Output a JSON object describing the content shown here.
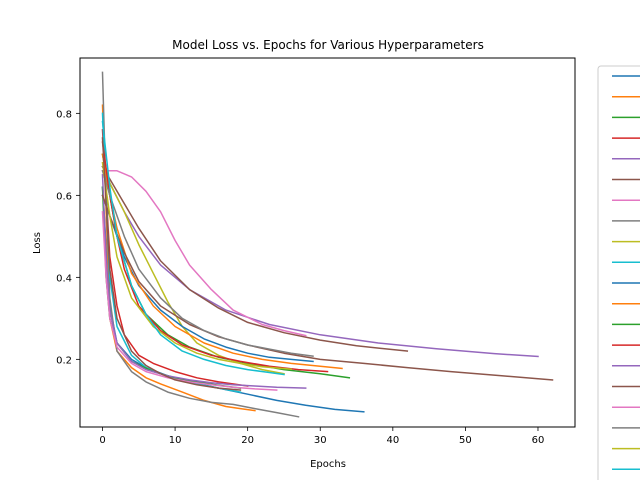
{
  "chart_data": {
    "type": "line",
    "title": "Model Loss vs. Epochs for Various Hyperparameters",
    "xlabel": "Epochs",
    "ylabel": "Loss",
    "xlim": [
      -3.1,
      65.1
    ],
    "ylim": [
      0.035,
      0.935
    ],
    "xticks": [
      "0",
      "10",
      "20",
      "30",
      "40",
      "50",
      "60"
    ],
    "xtick_values": [
      0,
      10,
      20,
      30,
      40,
      50,
      60
    ],
    "yticks": [
      "0.2",
      "0.4",
      "0.6",
      "0.8"
    ],
    "ytick_values": [
      0.2,
      0.4,
      0.6,
      0.8
    ],
    "grid": false,
    "legend_placement": "right",
    "legend_swatch_colors": [
      "#1f77b4",
      "#ff7f0e",
      "#2ca02c",
      "#d62728",
      "#9467bd",
      "#8c564b",
      "#e377c2",
      "#7f7f7f",
      "#bcbd22",
      "#17becf",
      "#1f77b4",
      "#ff7f0e",
      "#2ca02c",
      "#d62728",
      "#9467bd",
      "#8c564b",
      "#e377c2",
      "#7f7f7f",
      "#bcbd22",
      "#17becf"
    ],
    "series": [
      {
        "color": "#1f77b4",
        "x": [
          0,
          1,
          2,
          4,
          6,
          9,
          12,
          16,
          20,
          24,
          28,
          32,
          36
        ],
        "y": [
          0.62,
          0.33,
          0.24,
          0.2,
          0.18,
          0.16,
          0.145,
          0.13,
          0.115,
          0.1,
          0.088,
          0.078,
          0.072
        ]
      },
      {
        "color": "#ff7f0e",
        "x": [
          0,
          1,
          2,
          4,
          6,
          8,
          11,
          14,
          17,
          19,
          21
        ],
        "y": [
          0.82,
          0.3,
          0.22,
          0.18,
          0.155,
          0.14,
          0.12,
          0.1,
          0.085,
          0.08,
          0.075
        ]
      },
      {
        "color": "#2ca02c",
        "x": [
          0,
          1,
          2,
          4,
          6,
          9,
          12,
          16,
          20,
          25,
          30,
          34
        ],
        "y": [
          0.7,
          0.6,
          0.5,
          0.38,
          0.31,
          0.26,
          0.23,
          0.205,
          0.19,
          0.175,
          0.165,
          0.155
        ]
      },
      {
        "color": "#d62728",
        "x": [
          0,
          1,
          2,
          3,
          5,
          7,
          10,
          13,
          16,
          20
        ],
        "y": [
          0.76,
          0.45,
          0.33,
          0.26,
          0.21,
          0.19,
          0.17,
          0.155,
          0.145,
          0.135
        ]
      },
      {
        "color": "#9467bd",
        "x": [
          0,
          1,
          3,
          5,
          8,
          12,
          17,
          23,
          30,
          38,
          46,
          54,
          60
        ],
        "y": [
          0.67,
          0.63,
          0.56,
          0.5,
          0.43,
          0.37,
          0.32,
          0.285,
          0.26,
          0.24,
          0.226,
          0.214,
          0.207
        ]
      },
      {
        "color": "#8c564b",
        "x": [
          0,
          1,
          3,
          5,
          8,
          12,
          16,
          20,
          25,
          30,
          35,
          42
        ],
        "y": [
          0.67,
          0.64,
          0.58,
          0.52,
          0.44,
          0.37,
          0.325,
          0.29,
          0.265,
          0.247,
          0.233,
          0.22
        ]
      },
      {
        "color": "#e377c2",
        "x": [
          0,
          2,
          4,
          6,
          8,
          10,
          12,
          15,
          18,
          22,
          25,
          28
        ],
        "y": [
          0.66,
          0.66,
          0.645,
          0.61,
          0.56,
          0.49,
          0.43,
          0.37,
          0.32,
          0.285,
          0.27,
          0.258
        ]
      },
      {
        "color": "#7f7f7f",
        "x": [
          0,
          0.5,
          1,
          2,
          4,
          6,
          9,
          12,
          15,
          18,
          21,
          24,
          27
        ],
        "y": [
          0.9,
          0.6,
          0.35,
          0.22,
          0.17,
          0.145,
          0.12,
          0.105,
          0.095,
          0.09,
          0.08,
          0.07,
          0.06
        ]
      },
      {
        "color": "#bcbd22",
        "x": [
          0,
          1,
          3,
          5,
          7,
          9,
          11,
          13,
          16,
          19,
          22,
          25
        ],
        "y": [
          0.7,
          0.63,
          0.56,
          0.48,
          0.41,
          0.34,
          0.28,
          0.24,
          0.21,
          0.19,
          0.175,
          0.165
        ]
      },
      {
        "color": "#17becf",
        "x": [
          0,
          1,
          2,
          4,
          6,
          8,
          10,
          13,
          16,
          19
        ],
        "y": [
          0.8,
          0.4,
          0.28,
          0.21,
          0.18,
          0.165,
          0.155,
          0.14,
          0.13,
          0.12
        ]
      },
      {
        "color": "#1f77b4",
        "x": [
          0,
          1,
          3,
          5,
          8,
          11,
          14,
          17,
          20,
          23,
          26,
          29
        ],
        "y": [
          0.6,
          0.55,
          0.45,
          0.38,
          0.32,
          0.28,
          0.25,
          0.23,
          0.215,
          0.205,
          0.2,
          0.195
        ]
      },
      {
        "color": "#ff7f0e",
        "x": [
          0,
          1,
          2,
          4,
          7,
          10,
          14,
          18,
          22,
          26,
          30,
          33
        ],
        "y": [
          0.7,
          0.6,
          0.52,
          0.41,
          0.33,
          0.28,
          0.24,
          0.215,
          0.2,
          0.19,
          0.183,
          0.178
        ]
      },
      {
        "color": "#2ca02c",
        "x": [
          0,
          0.5,
          1,
          2,
          4,
          7,
          10,
          13,
          16,
          19
        ],
        "y": [
          0.62,
          0.4,
          0.3,
          0.24,
          0.195,
          0.17,
          0.155,
          0.145,
          0.137,
          0.13
        ]
      },
      {
        "color": "#d62728",
        "x": [
          0,
          1,
          2,
          3,
          5,
          8,
          11,
          15,
          19,
          23,
          27,
          31
        ],
        "y": [
          0.73,
          0.6,
          0.5,
          0.42,
          0.33,
          0.27,
          0.235,
          0.21,
          0.195,
          0.183,
          0.175,
          0.17
        ]
      },
      {
        "color": "#9467bd",
        "x": [
          0,
          0.5,
          1,
          2,
          4,
          6,
          9,
          12,
          15,
          18,
          21,
          24,
          28
        ],
        "y": [
          0.65,
          0.45,
          0.32,
          0.24,
          0.195,
          0.175,
          0.16,
          0.15,
          0.143,
          0.138,
          0.135,
          0.132,
          0.13
        ]
      },
      {
        "color": "#8c564b",
        "x": [
          0,
          1,
          3,
          5,
          8,
          12,
          16,
          20,
          25,
          30,
          36,
          42,
          48,
          55,
          62
        ],
        "y": [
          0.6,
          0.55,
          0.46,
          0.39,
          0.33,
          0.285,
          0.255,
          0.235,
          0.215,
          0.2,
          0.19,
          0.18,
          0.17,
          0.16,
          0.15
        ]
      },
      {
        "color": "#e377c2",
        "x": [
          0,
          0.5,
          1,
          2,
          4,
          6,
          9,
          12,
          15,
          18,
          21,
          24
        ],
        "y": [
          0.56,
          0.4,
          0.3,
          0.23,
          0.19,
          0.17,
          0.155,
          0.145,
          0.138,
          0.132,
          0.128,
          0.125
        ]
      },
      {
        "color": "#7f7f7f",
        "x": [
          0,
          1,
          3,
          5,
          8,
          11,
          14,
          17,
          20,
          23,
          26,
          29
        ],
        "y": [
          0.66,
          0.6,
          0.5,
          0.42,
          0.35,
          0.3,
          0.27,
          0.25,
          0.235,
          0.225,
          0.215,
          0.208
        ]
      },
      {
        "color": "#bcbd22",
        "x": [
          0,
          1,
          2,
          4,
          7,
          10,
          13,
          16,
          19,
          22,
          26
        ],
        "y": [
          0.68,
          0.55,
          0.45,
          0.35,
          0.28,
          0.24,
          0.215,
          0.2,
          0.19,
          0.182,
          0.176
        ]
      },
      {
        "color": "#17becf",
        "x": [
          0,
          1,
          2,
          4,
          6,
          8,
          11,
          14,
          17,
          20,
          23,
          25
        ],
        "y": [
          0.78,
          0.62,
          0.5,
          0.38,
          0.31,
          0.26,
          0.22,
          0.2,
          0.185,
          0.175,
          0.168,
          0.163
        ]
      },
      {
        "color": "#8c564b",
        "x": [
          0,
          1,
          2,
          4,
          6,
          8,
          10,
          13,
          16,
          19
        ],
        "y": [
          0.74,
          0.42,
          0.3,
          0.22,
          0.185,
          0.165,
          0.15,
          0.138,
          0.13,
          0.125
        ]
      }
    ]
  }
}
